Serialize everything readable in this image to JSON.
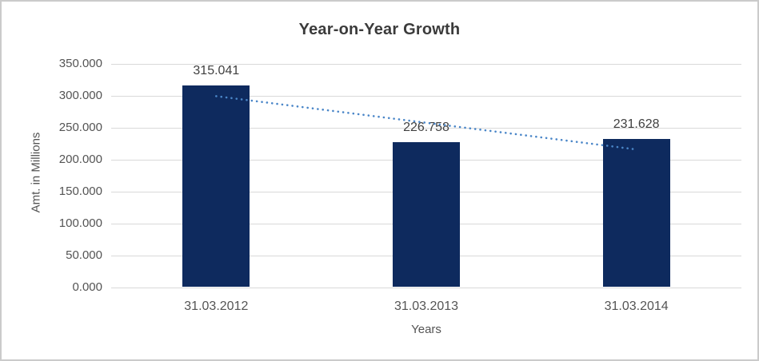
{
  "chart_data": {
    "type": "bar",
    "title": "Year-on-Year Growth",
    "xlabel": "Years",
    "ylabel": "Amt. in Millions",
    "categories": [
      "31.03.2012",
      "31.03.2013",
      "31.03.2014"
    ],
    "series": [
      {
        "values": [
          315.041,
          226.758,
          231.628
        ]
      }
    ],
    "data_labels": [
      "315.041",
      "226.758",
      "231.628"
    ],
    "y_ticks": [
      "350.000",
      "300.000",
      "250.000",
      "200.000",
      "150.000",
      "100.000",
      "50.000",
      "0.000"
    ],
    "ylim": [
      0,
      350
    ],
    "grid": true,
    "legend": "none",
    "trendline": {
      "type": "linear",
      "style": "dotted",
      "start_value": 299.5,
      "end_value": 216.1
    },
    "colors": {
      "bar": "#0e2a5e",
      "gridline": "#d9d9d9",
      "axis_text": "#545454",
      "title_text": "#3b3b3b",
      "data_label_text": "#404040",
      "trendline": "#4a86c8",
      "chart_frame": "#cbcbcb",
      "background": "#ffffff"
    }
  }
}
